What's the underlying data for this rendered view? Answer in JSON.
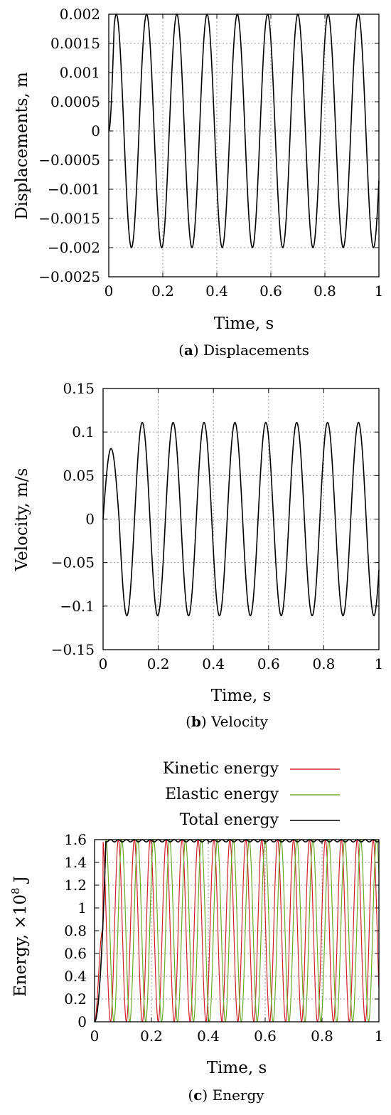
{
  "chart_data": [
    {
      "type": "line",
      "caption_letter": "a",
      "caption_text": "Displacements",
      "xlabel": "Time, s",
      "ylabel": "Displacements, m",
      "xlim": [
        0,
        1
      ],
      "ylim": [
        -0.0025,
        0.002
      ],
      "xticks": [
        "0",
        "0.2",
        "0.4",
        "0.6",
        "0.8",
        "1"
      ],
      "yticks": [
        "0.002",
        "0.0015",
        "0.001",
        "0.0005",
        "0",
        "−0.0005",
        "−0.001",
        "−0.0015",
        "−0.002",
        "−0.0025"
      ],
      "grid": true,
      "series": [
        {
          "color": "#000000",
          "model": "displacement",
          "amplitude": 0.002,
          "frequency_hz": 8.93,
          "initial_value": 0
        }
      ]
    },
    {
      "type": "line",
      "caption_letter": "b",
      "caption_text": "Velocity",
      "xlabel": "Time, s",
      "ylabel": "Velocity, m/s",
      "xlim": [
        0,
        1
      ],
      "ylim": [
        -0.15,
        0.15
      ],
      "xticks": [
        "0",
        "0.2",
        "0.4",
        "0.6",
        "0.8",
        "1"
      ],
      "yticks": [
        "0.15",
        "0.1",
        "0.05",
        "0",
        "−0.05",
        "−0.1",
        "−0.15"
      ],
      "grid": true,
      "series": [
        {
          "color": "#000000",
          "model": "velocity",
          "amplitude": 0.111,
          "first_peak": 0.081,
          "frequency_hz": 8.93,
          "initial_value": 0
        }
      ]
    },
    {
      "type": "line",
      "caption_letter": "c",
      "caption_text": "Energy",
      "xlabel": "Time, s",
      "ylabel_main": "Energy, ×10",
      "ylabel_exp": "8",
      "ylabel_unit": " J",
      "xlim": [
        0,
        1
      ],
      "ylim": [
        0,
        1.6
      ],
      "xticks": [
        "0",
        "0.2",
        "0.4",
        "0.6",
        "0.8",
        "1"
      ],
      "yticks": [
        "1.6",
        "1.4",
        "1.2",
        "1",
        "0.8",
        "0.6",
        "0.4",
        "0.2",
        "0"
      ],
      "grid": true,
      "legend_position": "top-right, above plot",
      "series": [
        {
          "name": "Kinetic energy",
          "color": "#d0202a",
          "model": "kinetic",
          "max": 1.6,
          "frequency_hz": 8.93
        },
        {
          "name": "Elastic energy",
          "color": "#6aaa2a",
          "model": "elastic",
          "max": 1.6,
          "frequency_hz": 8.93
        },
        {
          "name": "Total energy",
          "color": "#000000",
          "model": "total",
          "plateau": 1.59,
          "ripple": 0.02,
          "ramp_end_s": 0.04
        }
      ]
    }
  ]
}
